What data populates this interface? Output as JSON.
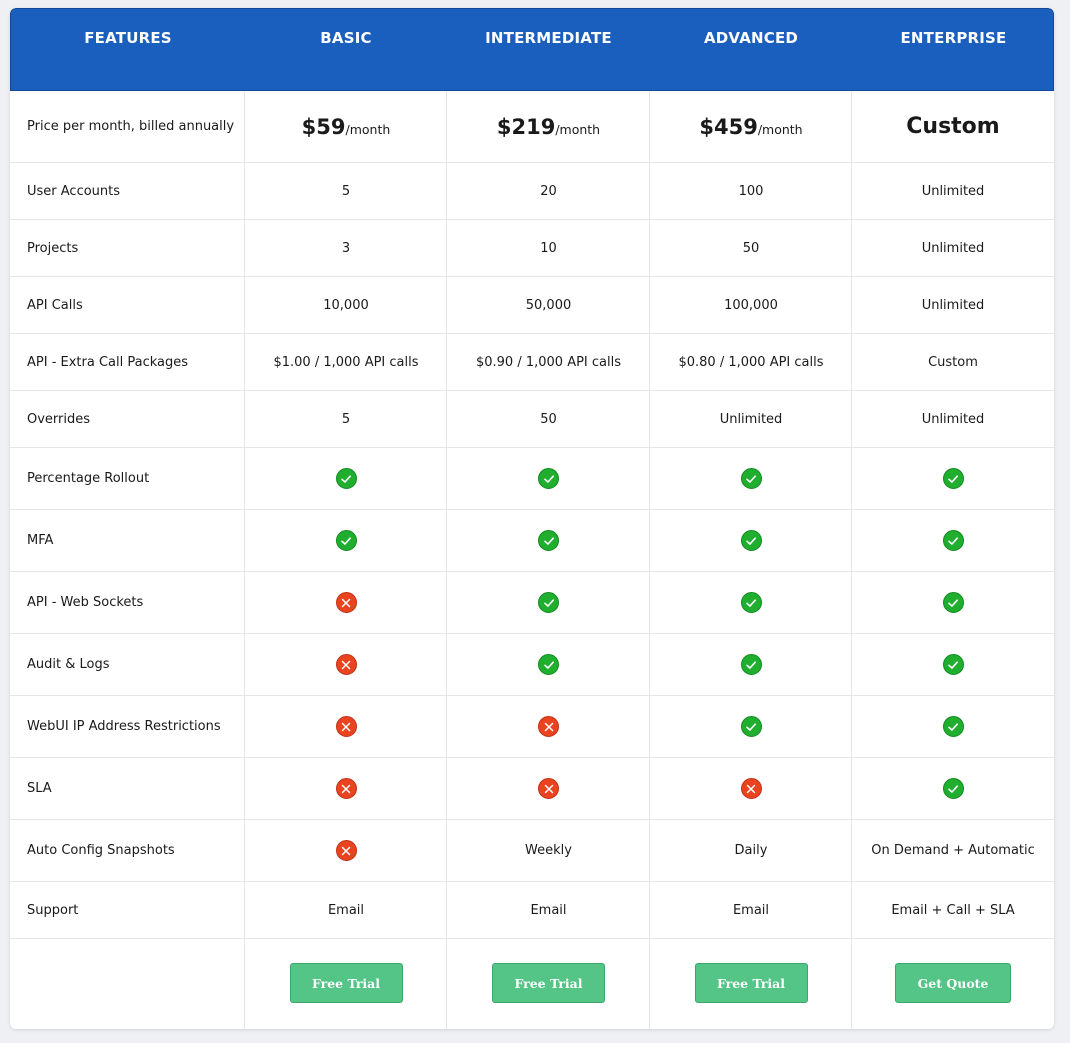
{
  "header": {
    "features": "FEATURES",
    "basic": "BASIC",
    "intermediate": "INTERMEDIATE",
    "advanced": "ADVANCED",
    "enterprise": "ENTERPRISE"
  },
  "price": {
    "label": "Price per month, billed annually",
    "basic": "$59",
    "intermediate": "$219",
    "advanced": "$459",
    "unit": "/month",
    "enterprise": "Custom"
  },
  "rows": [
    {
      "label": "User Accounts",
      "values": [
        "5",
        "20",
        "100",
        "Unlimited"
      ]
    },
    {
      "label": "Projects",
      "values": [
        "3",
        "10",
        "50",
        "Unlimited"
      ]
    },
    {
      "label": "API Calls",
      "values": [
        "10,000",
        "50,000",
        "100,000",
        "Unlimited"
      ]
    },
    {
      "label": "API - Extra Call Packages",
      "values": [
        "$1.00 / 1,000 API calls",
        "$0.90 / 1,000 API calls",
        "$0.80 / 1,000 API calls",
        "Custom"
      ]
    },
    {
      "label": "Overrides",
      "values": [
        "5",
        "50",
        "Unlimited",
        "Unlimited"
      ]
    },
    {
      "label": "Percentage Rollout",
      "values": [
        "check",
        "check",
        "check",
        "check"
      ]
    },
    {
      "label": "MFA",
      "values": [
        "check",
        "check",
        "check",
        "check"
      ]
    },
    {
      "label": "API - Web Sockets",
      "values": [
        "cross",
        "check",
        "check",
        "check"
      ]
    },
    {
      "label": "Audit & Logs",
      "values": [
        "cross",
        "check",
        "check",
        "check"
      ]
    },
    {
      "label": "WebUI IP Address Restrictions",
      "values": [
        "cross",
        "cross",
        "check",
        "check"
      ]
    },
    {
      "label": "SLA",
      "values": [
        "cross",
        "cross",
        "cross",
        "check"
      ]
    },
    {
      "label": "Auto Config Snapshots",
      "values": [
        "cross",
        "Weekly",
        "Daily",
        "On Demand + Automatic"
      ]
    },
    {
      "label": "Support",
      "values": [
        "Email",
        "Email",
        "Email",
        "Email + Call + SLA"
      ]
    }
  ],
  "icons": {
    "check": "check-circle-icon",
    "cross": "x-circle-icon"
  },
  "buttons": {
    "basic": "Free Trial",
    "intermediate": "Free Trial",
    "advanced": "Free Trial",
    "enterprise": "Get Quote"
  },
  "colors": {
    "header_bg": "#1a5fbd",
    "check": "#1fae2e",
    "cross": "#e9441f",
    "button": "#55c487"
  }
}
